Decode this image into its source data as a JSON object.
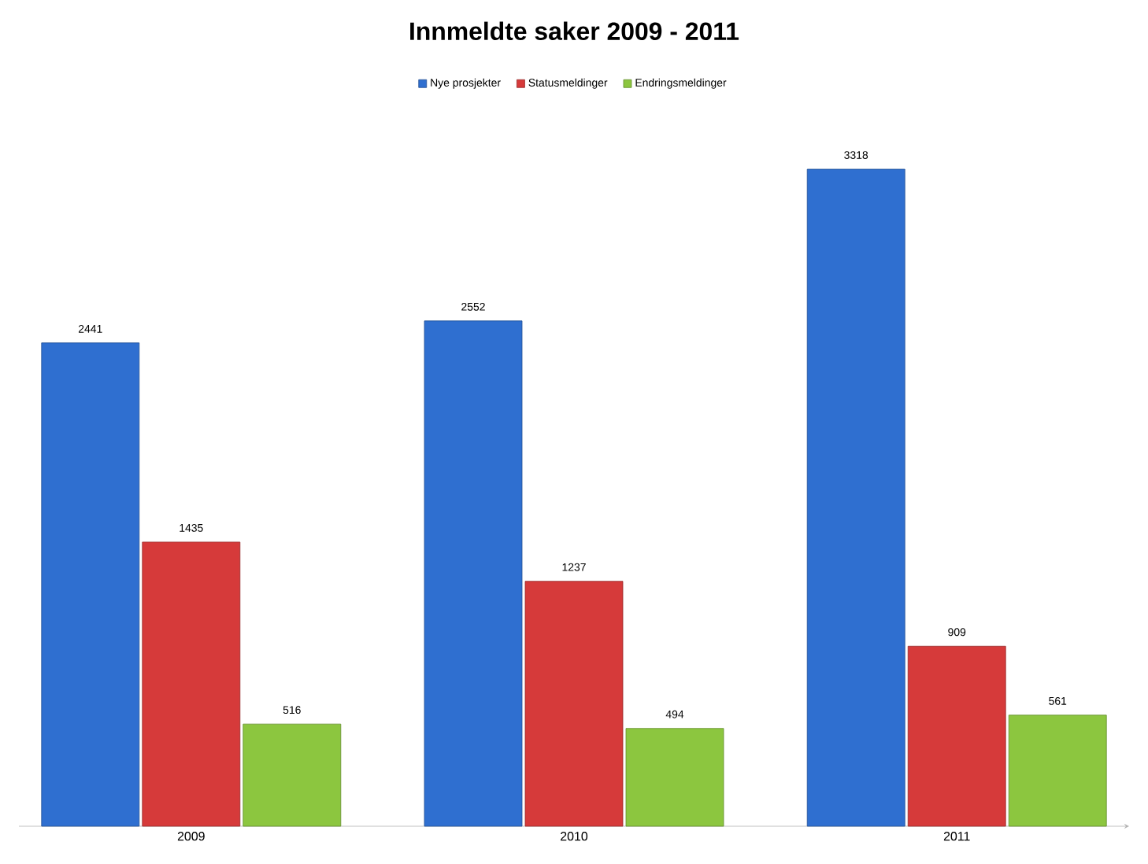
{
  "chart_data": {
    "type": "bar",
    "title": "Innmeldte saker 2009 - 2011",
    "categories": [
      "2009",
      "2010",
      "2011"
    ],
    "series": [
      {
        "name": "Nye prosjekter",
        "color": "#2f6fd0",
        "values": [
          2441,
          2552,
          3318
        ]
      },
      {
        "name": "Statusmeldinger",
        "color": "#d63a3a",
        "values": [
          1435,
          1237,
          909
        ]
      },
      {
        "name": "Endringsmeldinger",
        "color": "#8cc63f",
        "values": [
          516,
          494,
          561
        ]
      }
    ],
    "data_labels": true,
    "legend": "top"
  }
}
